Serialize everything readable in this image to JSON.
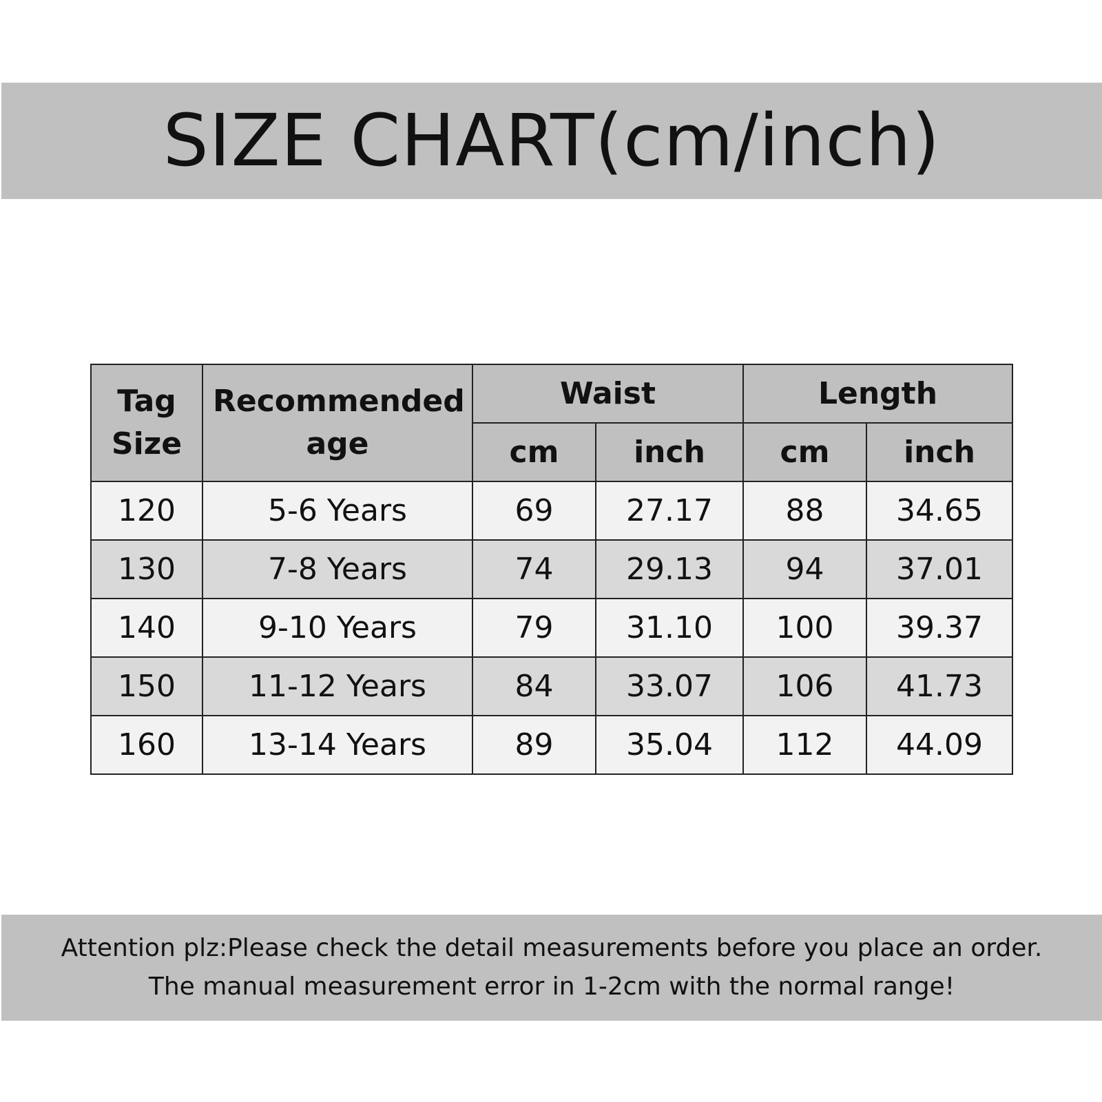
{
  "header": {
    "title": "SIZE CHART(cm/inch)"
  },
  "table": {
    "headers": {
      "tag_size": "Tag Size",
      "age": "Recommended age",
      "waist": "Waist",
      "length": "Length",
      "waist_cm": "cm",
      "waist_inch": "inch",
      "length_cm": "cm",
      "length_inch": "inch"
    },
    "rows": [
      [
        "120",
        "5-6 Years",
        "69",
        "27.17",
        "88",
        "34.65"
      ],
      [
        "130",
        "7-8 Years",
        "74",
        "29.13",
        "94",
        "37.01"
      ],
      [
        "140",
        "9-10 Years",
        "79",
        "31.10",
        "100",
        "39.37"
      ],
      [
        "150",
        "11-12 Years",
        "84",
        "33.07",
        "106",
        "41.73"
      ],
      [
        "160",
        "13-14 Years",
        "89",
        "35.04",
        "112",
        "44.09"
      ]
    ]
  },
  "footer": {
    "lines": [
      "Attention plz:Please check the detail measurements before you place an order.",
      "The manual measurement error in 1-2cm with the normal range!"
    ]
  }
}
